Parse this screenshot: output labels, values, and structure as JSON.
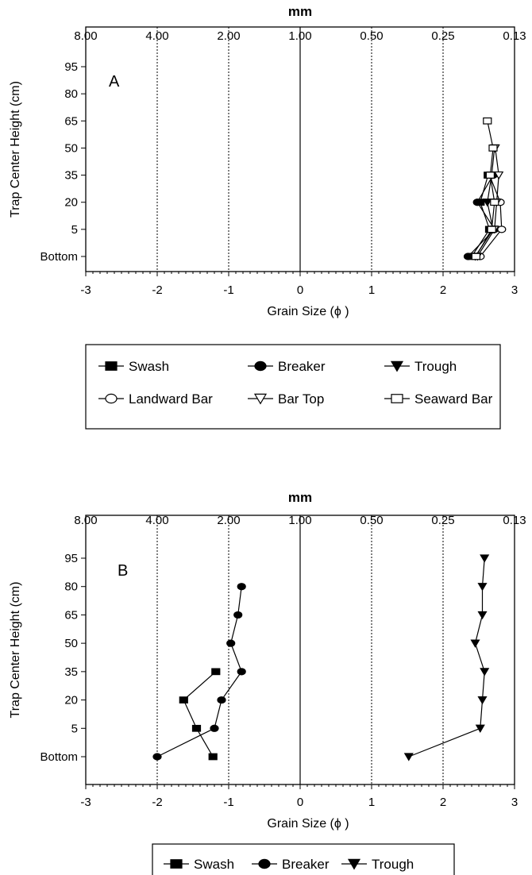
{
  "chart_data": [
    {
      "type": "line",
      "panel_label": "A",
      "top_axis": {
        "title": "mm",
        "tick_labels": [
          "8.00",
          "4.00",
          "2.00",
          "1.00",
          "0.50",
          "0.25",
          "0.13"
        ]
      },
      "xlabel": "Grain Size (ϕ )",
      "ylabel": "Trap Center Height (cm)",
      "xlim": [
        -3,
        3
      ],
      "x_ticks": [
        "-3",
        "-2",
        "-1",
        "0",
        "1",
        "2",
        "3"
      ],
      "y_categories": [
        "Bottom",
        "5",
        "20",
        "35",
        "50",
        "65",
        "80",
        "95"
      ],
      "grid": "dotted vertical lines at -2, -1, 1, 2; solid line at 0",
      "series": [
        {
          "name": "Swash",
          "marker": "square-filled",
          "points": [
            {
              "x": 2.4,
              "y": "Bottom"
            },
            {
              "x": 2.65,
              "y": "5"
            },
            {
              "x": 2.52,
              "y": "20"
            },
            {
              "x": 2.63,
              "y": "35"
            }
          ]
        },
        {
          "name": "Breaker",
          "marker": "circle-filled",
          "points": [
            {
              "x": 2.35,
              "y": "Bottom"
            },
            {
              "x": 2.72,
              "y": "5"
            },
            {
              "x": 2.48,
              "y": "20"
            },
            {
              "x": 2.7,
              "y": "35"
            }
          ]
        },
        {
          "name": "Trough",
          "marker": "triangle-down-filled",
          "points": [
            {
              "x": 2.45,
              "y": "Bottom"
            },
            {
              "x": 2.7,
              "y": "5"
            },
            {
              "x": 2.62,
              "y": "20"
            },
            {
              "x": 2.68,
              "y": "35"
            },
            {
              "x": 2.72,
              "y": "50"
            }
          ]
        },
        {
          "name": "Landward Bar",
          "marker": "circle-open",
          "points": [
            {
              "x": 2.52,
              "y": "Bottom"
            },
            {
              "x": 2.82,
              "y": "5"
            },
            {
              "x": 2.8,
              "y": "20"
            },
            {
              "x": 2.65,
              "y": "35"
            }
          ]
        },
        {
          "name": "Bar Top",
          "marker": "triangle-down-open",
          "points": [
            {
              "x": 2.48,
              "y": "Bottom"
            },
            {
              "x": 2.72,
              "y": "5"
            },
            {
              "x": 2.75,
              "y": "20"
            },
            {
              "x": 2.78,
              "y": "35"
            },
            {
              "x": 2.73,
              "y": "50"
            }
          ]
        },
        {
          "name": "Seaward Bar",
          "marker": "square-open",
          "points": [
            {
              "x": 2.46,
              "y": "Bottom"
            },
            {
              "x": 2.68,
              "y": "5"
            },
            {
              "x": 2.72,
              "y": "20"
            },
            {
              "x": 2.66,
              "y": "35"
            },
            {
              "x": 2.7,
              "y": "50"
            },
            {
              "x": 2.62,
              "y": "65"
            }
          ]
        }
      ],
      "legend": {
        "placement": "below",
        "entries": [
          "Swash",
          "Breaker",
          "Trough",
          "Landward Bar",
          "Bar Top",
          "Seaward Bar"
        ]
      }
    },
    {
      "type": "line",
      "panel_label": "B",
      "top_axis": {
        "title": "mm",
        "tick_labels": [
          "8.00",
          "4.00",
          "2.00",
          "1.00",
          "0.50",
          "0.25",
          "0.13"
        ]
      },
      "xlabel": "Grain Size (ϕ )",
      "ylabel": "Trap Center Height (cm)",
      "xlim": [
        -3,
        3
      ],
      "x_ticks": [
        "-3",
        "-2",
        "-1",
        "0",
        "1",
        "2",
        "3"
      ],
      "y_categories": [
        "Bottom",
        "5",
        "20",
        "35",
        "50",
        "65",
        "80",
        "95"
      ],
      "grid": "dotted vertical lines at -2, -1, 1, 2; solid line at 0",
      "series": [
        {
          "name": "Swash",
          "marker": "square-filled",
          "points": [
            {
              "x": -1.22,
              "y": "Bottom"
            },
            {
              "x": -1.45,
              "y": "5"
            },
            {
              "x": -1.63,
              "y": "20"
            },
            {
              "x": -1.18,
              "y": "35"
            }
          ]
        },
        {
          "name": "Breaker",
          "marker": "circle-filled",
          "points": [
            {
              "x": -2.0,
              "y": "Bottom"
            },
            {
              "x": -1.2,
              "y": "5"
            },
            {
              "x": -1.1,
              "y": "20"
            },
            {
              "x": -0.82,
              "y": "35"
            },
            {
              "x": -0.97,
              "y": "50"
            },
            {
              "x": -0.87,
              "y": "65"
            },
            {
              "x": -0.82,
              "y": "80"
            }
          ]
        },
        {
          "name": "Trough",
          "marker": "triangle-down-filled",
          "points": [
            {
              "x": 1.52,
              "y": "Bottom"
            },
            {
              "x": 2.52,
              "y": "5"
            },
            {
              "x": 2.55,
              "y": "20"
            },
            {
              "x": 2.58,
              "y": "35"
            },
            {
              "x": 2.45,
              "y": "50"
            },
            {
              "x": 2.55,
              "y": "65"
            },
            {
              "x": 2.55,
              "y": "80"
            },
            {
              "x": 2.58,
              "y": "95"
            }
          ]
        }
      ],
      "legend": {
        "placement": "below",
        "entries": [
          "Swash",
          "Breaker",
          "Trough"
        ]
      }
    }
  ]
}
